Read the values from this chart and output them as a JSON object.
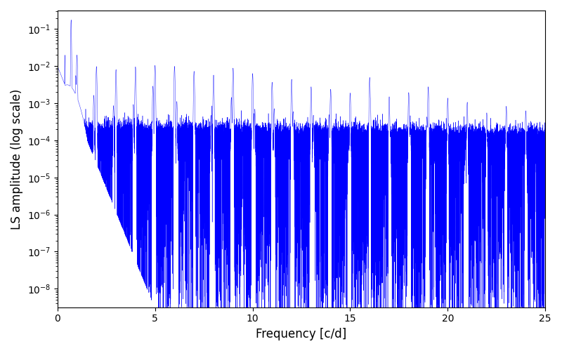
{
  "xlabel": "Frequency [c/d]",
  "ylabel": "LS amplitude (log scale)",
  "color": "#0000ff",
  "xlim": [
    0,
    25
  ],
  "ylim_log": [
    -8.5,
    -0.5
  ],
  "figsize": [
    8.0,
    5.0
  ],
  "dpi": 100,
  "seed": 42,
  "n_points": 50000,
  "freq_max": 25.0,
  "background_color": "#ffffff"
}
